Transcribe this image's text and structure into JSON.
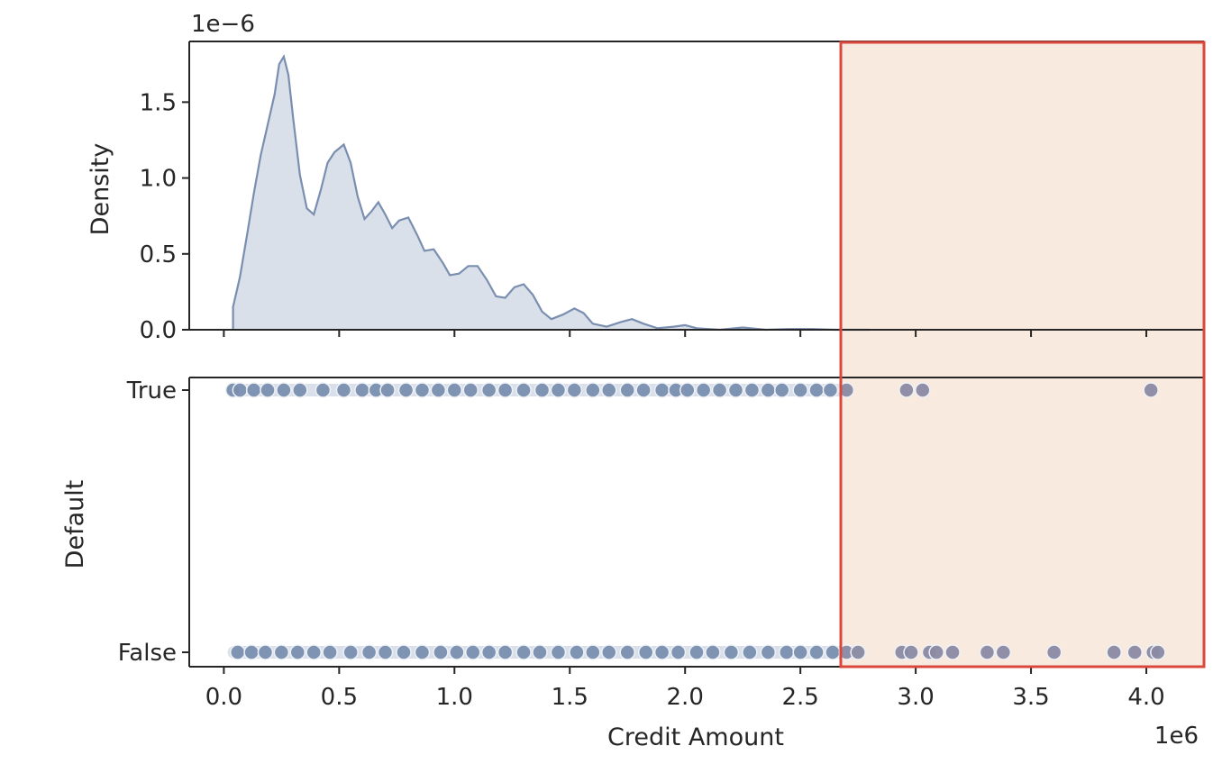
{
  "chart_data": [
    {
      "type": "area",
      "name": "density-panel",
      "ylabel": "Density",
      "offset_label": "1e−6",
      "ylim": [
        0,
        1.9
      ],
      "yticks": [
        0.0,
        0.5,
        1.0,
        1.5
      ],
      "ytick_labels": [
        "0.0",
        "0.5",
        "1.0",
        "1.5"
      ],
      "xlim": [
        -0.15,
        4.25
      ],
      "xticks": [
        0.0,
        0.5,
        1.0,
        1.5,
        2.0,
        2.5,
        3.0,
        3.5,
        4.0
      ],
      "x_unit_multiplier": "1e6",
      "points": [
        [
          0.04,
          0.15
        ],
        [
          0.07,
          0.35
        ],
        [
          0.1,
          0.62
        ],
        [
          0.13,
          0.9
        ],
        [
          0.16,
          1.15
        ],
        [
          0.19,
          1.35
        ],
        [
          0.22,
          1.55
        ],
        [
          0.24,
          1.75
        ],
        [
          0.26,
          1.8
        ],
        [
          0.28,
          1.68
        ],
        [
          0.3,
          1.4
        ],
        [
          0.33,
          1.02
        ],
        [
          0.36,
          0.8
        ],
        [
          0.39,
          0.76
        ],
        [
          0.42,
          0.92
        ],
        [
          0.45,
          1.1
        ],
        [
          0.48,
          1.17
        ],
        [
          0.52,
          1.22
        ],
        [
          0.55,
          1.1
        ],
        [
          0.58,
          0.88
        ],
        [
          0.61,
          0.73
        ],
        [
          0.64,
          0.78
        ],
        [
          0.67,
          0.84
        ],
        [
          0.7,
          0.76
        ],
        [
          0.73,
          0.67
        ],
        [
          0.76,
          0.72
        ],
        [
          0.8,
          0.74
        ],
        [
          0.84,
          0.62
        ],
        [
          0.87,
          0.52
        ],
        [
          0.91,
          0.53
        ],
        [
          0.95,
          0.44
        ],
        [
          0.98,
          0.36
        ],
        [
          1.02,
          0.37
        ],
        [
          1.06,
          0.42
        ],
        [
          1.1,
          0.42
        ],
        [
          1.14,
          0.33
        ],
        [
          1.18,
          0.22
        ],
        [
          1.22,
          0.21
        ],
        [
          1.26,
          0.28
        ],
        [
          1.3,
          0.3
        ],
        [
          1.34,
          0.23
        ],
        [
          1.38,
          0.12
        ],
        [
          1.42,
          0.07
        ],
        [
          1.47,
          0.1
        ],
        [
          1.52,
          0.14
        ],
        [
          1.56,
          0.11
        ],
        [
          1.6,
          0.04
        ],
        [
          1.66,
          0.02
        ],
        [
          1.72,
          0.05
        ],
        [
          1.77,
          0.07
        ],
        [
          1.82,
          0.04
        ],
        [
          1.88,
          0.01
        ],
        [
          1.95,
          0.02
        ],
        [
          2.0,
          0.03
        ],
        [
          2.05,
          0.01
        ],
        [
          2.15,
          0.0
        ],
        [
          2.25,
          0.015
        ],
        [
          2.35,
          0.0
        ],
        [
          2.45,
          0.005
        ],
        [
          2.55,
          0.005
        ],
        [
          2.65,
          0.0
        ],
        [
          2.8,
          0.0
        ]
      ]
    },
    {
      "type": "scatter",
      "name": "default-panel",
      "xlabel": "Credit Amount",
      "ylabel": "Default",
      "categories": [
        "True",
        "False"
      ],
      "xlim": [
        -0.15,
        4.25
      ],
      "xticks": [
        0.0,
        0.5,
        1.0,
        1.5,
        2.0,
        2.5,
        3.0,
        3.5,
        4.0
      ],
      "xtick_labels": [
        "0.0",
        "0.5",
        "1.0",
        "1.5",
        "2.0",
        "2.5",
        "3.0",
        "3.5",
        "4.0"
      ],
      "x_offset_label": "1e6",
      "series": [
        {
          "category": "True",
          "x_dense_range": [
            0.03,
            2.7
          ],
          "x": [
            0.04,
            0.07,
            0.13,
            0.19,
            0.26,
            0.33,
            0.43,
            0.52,
            0.6,
            0.66,
            0.71,
            0.79,
            0.86,
            0.93,
            1.0,
            1.07,
            1.15,
            1.22,
            1.3,
            1.38,
            1.45,
            1.52,
            1.6,
            1.67,
            1.75,
            1.82,
            1.9,
            1.96,
            2.01,
            2.08,
            2.15,
            2.22,
            2.29,
            2.36,
            2.42,
            2.5,
            2.57,
            2.63,
            2.7,
            2.96,
            3.03,
            4.02
          ]
        },
        {
          "category": "False",
          "x_dense_range": [
            0.04,
            2.75
          ],
          "x": [
            0.06,
            0.12,
            0.18,
            0.25,
            0.32,
            0.39,
            0.46,
            0.55,
            0.63,
            0.7,
            0.78,
            0.86,
            0.94,
            1.01,
            1.08,
            1.15,
            1.22,
            1.3,
            1.37,
            1.45,
            1.53,
            1.6,
            1.67,
            1.75,
            1.83,
            1.9,
            1.97,
            2.05,
            2.12,
            2.2,
            2.28,
            2.36,
            2.44,
            2.5,
            2.57,
            2.64,
            2.7,
            2.75,
            2.94,
            2.98,
            3.06,
            3.09,
            3.16,
            3.31,
            3.38,
            3.6,
            3.86,
            3.95,
            4.03,
            4.05
          ]
        }
      ]
    }
  ],
  "highlight_box": {
    "border_color": "#d9483b",
    "fill_color": "#f9eae0"
  },
  "colors": {
    "series": "#7a8eb0",
    "fill": "#d8dee8",
    "outlier_point": "#8a8aa3",
    "axis": "#262626"
  }
}
